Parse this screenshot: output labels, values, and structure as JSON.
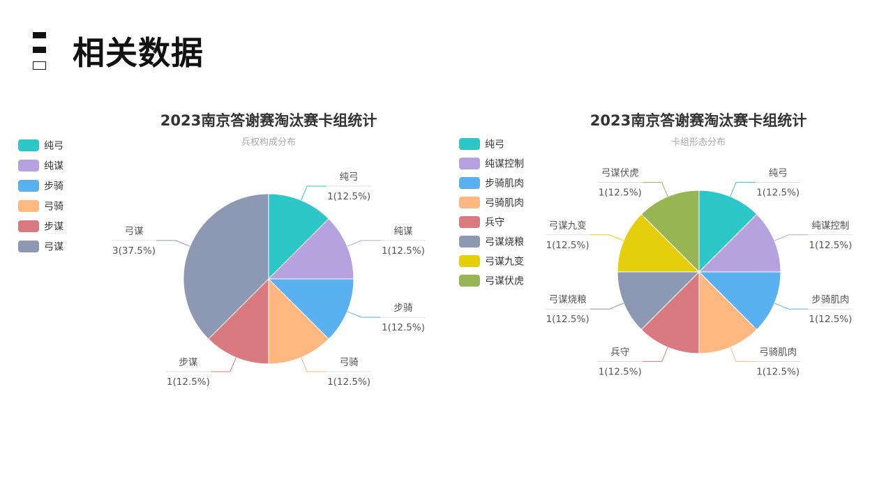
{
  "page": {
    "title": "相关数据"
  },
  "chart_data": [
    {
      "type": "pie",
      "title": "2023南京答谢赛淘汰赛卡组统计",
      "subtitle": "兵权构成分布",
      "legend_position": "left",
      "slices": [
        {
          "name": "纯弓",
          "value": 1,
          "label": "1(12.5%)",
          "color": "#2ec7c9"
        },
        {
          "name": "纯谋",
          "value": 1,
          "label": "1(12.5%)",
          "color": "#b6a2de"
        },
        {
          "name": "步骑",
          "value": 1,
          "label": "1(12.5%)",
          "color": "#5ab1ef"
        },
        {
          "name": "弓骑",
          "value": 1,
          "label": "1(12.5%)",
          "color": "#ffb980"
        },
        {
          "name": "步谋",
          "value": 1,
          "label": "1(12.5%)",
          "color": "#d87a80"
        },
        {
          "name": "弓谋",
          "value": 3,
          "label": "3(37.5%)",
          "color": "#8d98b3"
        }
      ]
    },
    {
      "type": "pie",
      "title": "2023南京答谢赛淘汰赛卡组统计",
      "subtitle": "卡组形态分布",
      "legend_position": "left",
      "slices": [
        {
          "name": "纯弓",
          "value": 1,
          "label": "1(12.5%)",
          "color": "#2ec7c9"
        },
        {
          "name": "纯谋控制",
          "value": 1,
          "label": "1(12.5%)",
          "color": "#b6a2de"
        },
        {
          "name": "步骑肌肉",
          "value": 1,
          "label": "1(12.5%)",
          "color": "#5ab1ef"
        },
        {
          "name": "弓骑肌肉",
          "value": 1,
          "label": "1(12.5%)",
          "color": "#ffb980"
        },
        {
          "name": "兵守",
          "value": 1,
          "label": "1(12.5%)",
          "color": "#d87a80"
        },
        {
          "name": "弓谋烧粮",
          "value": 1,
          "label": "1(12.5%)",
          "color": "#8d98b3"
        },
        {
          "name": "弓谋九变",
          "value": 1,
          "label": "1(12.5%)",
          "color": "#e5cf0d"
        },
        {
          "name": "弓谋伏虎",
          "value": 1,
          "label": "1(12.5%)",
          "color": "#97b552"
        }
      ]
    }
  ]
}
